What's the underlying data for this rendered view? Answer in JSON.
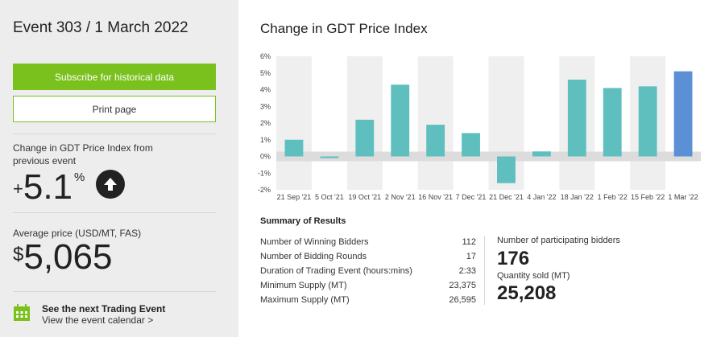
{
  "event": {
    "title": "Event 303 / 1 March 2022"
  },
  "buttons": {
    "subscribe": "Subscribe for historical data",
    "print": "Print page"
  },
  "change": {
    "label": "Change in GDT Price Index from previous event",
    "sign": "+",
    "value": "5.1",
    "unit": "%",
    "direction_icon": "arrow-up-icon"
  },
  "price": {
    "label": "Average price (USD/MT, FAS)",
    "currency": "$",
    "value": "5,065"
  },
  "next_event": {
    "icon": "calendar-icon",
    "title": "See the next Trading Event",
    "link": "View the event calendar >"
  },
  "chart_data": {
    "type": "bar",
    "title": "Change in GDT Price Index",
    "categories": [
      "21 Sep '21",
      "5 Oct '21",
      "19 Oct '21",
      "2 Nov '21",
      "16 Nov '21",
      "7 Dec '21",
      "21 Dec '21",
      "4 Jan '22",
      "18 Jan '22",
      "1 Feb '22",
      "15 Feb '22",
      "1 Mar '22"
    ],
    "values": [
      1.0,
      -0.1,
      2.2,
      4.3,
      1.9,
      1.4,
      -1.6,
      0.3,
      4.6,
      4.1,
      4.2,
      5.1
    ],
    "ylim": [
      -2,
      6
    ],
    "yticks": [
      "6%",
      "5%",
      "4%",
      "3%",
      "2%",
      "1%",
      "0%",
      "-1%",
      "-2%"
    ],
    "bar_color": "#5fbfbf",
    "highlight_color": "#5b8fd6",
    "highlight_index": 11,
    "zero_band_color": "#dcdcdc",
    "alt_band_color": "#efefef",
    "grid": false
  },
  "summary": {
    "title": "Summary of Results",
    "rows": [
      {
        "label": "Number of Winning Bidders",
        "value": "112"
      },
      {
        "label": "Number of Bidding Rounds",
        "value": "17"
      },
      {
        "label": "Duration of Trading Event (hours:mins)",
        "value": "2:33"
      },
      {
        "label": "Minimum Supply (MT)",
        "value": "23,375"
      },
      {
        "label": "Maximum Supply (MT)",
        "value": "26,595"
      }
    ],
    "participants_label": "Number of participating bidders",
    "participants_value": "176",
    "quantity_label": "Quantity sold (MT)",
    "quantity_value": "25,208"
  },
  "colors": {
    "accent_green": "#7ac11d",
    "sidebar_bg": "#ededed"
  }
}
